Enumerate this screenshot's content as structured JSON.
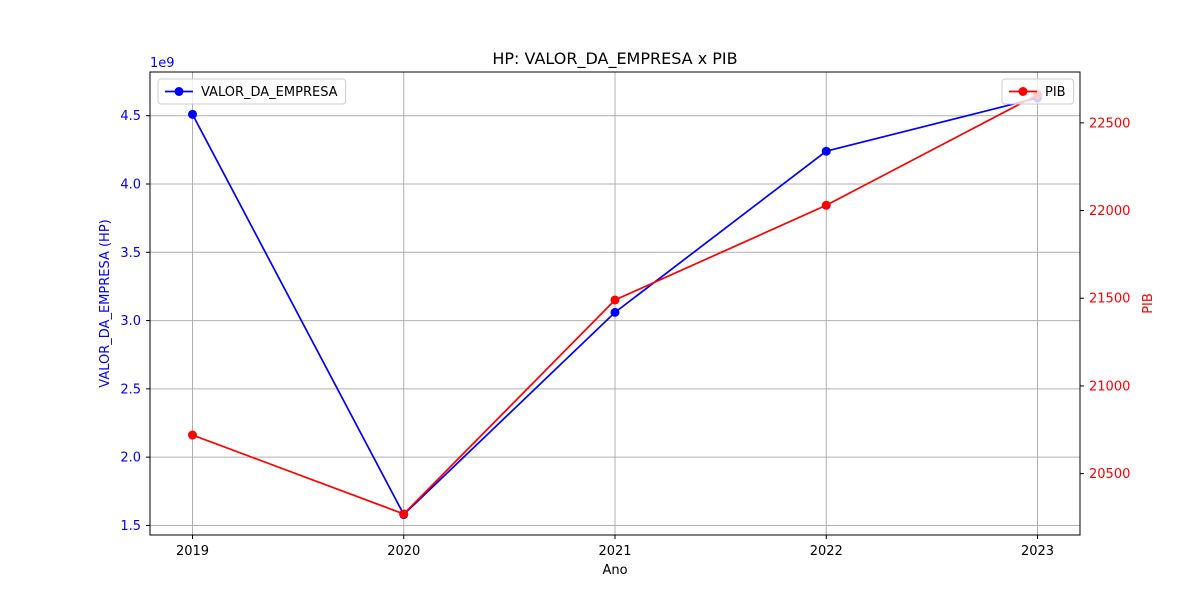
{
  "chart_data": {
    "type": "line",
    "title": "HP: VALOR_DA_EMPRESA x PIB",
    "xlabel": "Ano",
    "categories": [
      "2019",
      "2020",
      "2021",
      "2022",
      "2023"
    ],
    "x": [
      2019,
      2020,
      2021,
      2022,
      2023
    ],
    "left_axis": {
      "label": "VALOR_DA_EMPRESA (HP)",
      "offset_text": "1e9",
      "color": "#0000ff",
      "ticks": [
        "1.5",
        "2.0",
        "2.5",
        "3.0",
        "3.5",
        "4.0",
        "4.5"
      ],
      "tick_values": [
        1.5,
        2.0,
        2.5,
        3.0,
        3.5,
        4.0,
        4.5
      ],
      "ylim": [
        1.43,
        4.82
      ]
    },
    "right_axis": {
      "label": "PIB",
      "color": "#ff0000",
      "ticks": [
        "20500",
        "21000",
        "21500",
        "22000",
        "22500"
      ],
      "tick_values": [
        20500,
        21000,
        21500,
        22000,
        22500
      ],
      "ylim": [
        20150,
        22790
      ]
    },
    "series": [
      {
        "name": "VALOR_DA_EMPRESA",
        "axis": "left",
        "color": "#0000ff",
        "marker": "circle",
        "values": [
          4.51,
          1.58,
          3.06,
          4.24,
          4.63
        ]
      },
      {
        "name": "PIB",
        "axis": "right",
        "color": "#ff0000",
        "marker": "circle",
        "values": [
          20720,
          20270,
          21490,
          22030,
          22660
        ]
      }
    ],
    "grid": true,
    "legends": [
      {
        "series": "VALOR_DA_EMPRESA",
        "placement": "upper-left"
      },
      {
        "series": "PIB",
        "placement": "upper-right"
      }
    ]
  }
}
